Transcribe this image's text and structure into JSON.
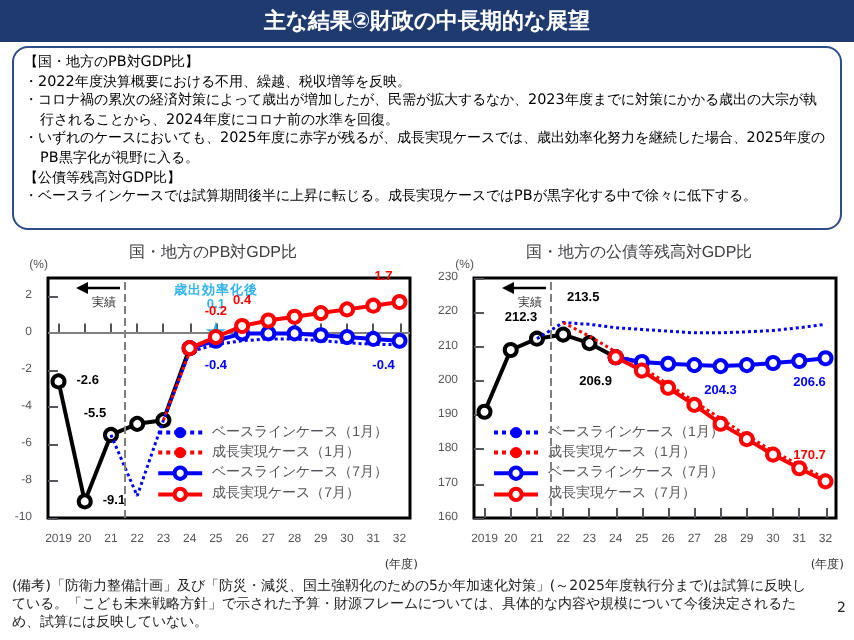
{
  "chart_data": [
    {
      "type": "other",
      "title": "主な結果②財政の中長期的な展望",
      "annotations": [
        "【国・地方のPB対GDP比】",
        "・2022年度決算概要における不用、繰越、税収増等を反映。",
        "・コロナ禍の累次の経済対策によって歳出が増加したが、民需が拡大するなか、2023年度までに対策にかかる歳出の大宗が執行されることから、2024年度にコロナ前の水準を回復。",
        "・いずれのケースにおいても、2025年度に赤字が残るが、成長実現ケースでは、歳出効率化努力を継続した場合、2025年度のPB黒字化が視野に入る。",
        "【公債等残高対GDP比】",
        "・ベースラインケースでは試算期間後半に上昇に転じる。成長実現ケースではPBが黒字化する中で徐々に低下する。"
      ]
    },
    {
      "type": "line",
      "title": "国・地方のPB対GDP比",
      "xlabel": "(年度)",
      "ylabel": "(%)",
      "legend": "bottom right",
      "grid": false,
      "x": [
        2019,
        2020,
        2021,
        2022,
        2023,
        2024,
        2025,
        2026,
        2027,
        2028,
        2029,
        2030,
        2031,
        2032
      ],
      "xlim": [
        2018.6,
        2032.4
      ],
      "xticks": [
        2019,
        {
          "value": 2020,
          "label": "20"
        },
        {
          "value": 2021,
          "label": "21"
        },
        {
          "value": 2022,
          "label": "22"
        },
        {
          "value": 2023,
          "label": "23"
        },
        {
          "value": 2024,
          "label": "24"
        },
        {
          "value": 2025,
          "label": "25"
        },
        {
          "value": 2026,
          "label": "26"
        },
        {
          "value": 2027,
          "label": "27"
        },
        {
          "value": 2028,
          "label": "28"
        },
        {
          "value": 2029,
          "label": "29"
        },
        {
          "value": 2030,
          "label": "30"
        },
        {
          "value": 2031,
          "label": "31"
        },
        {
          "value": 2032,
          "label": "32"
        }
      ],
      "ylim": [
        -10,
        3
      ],
      "yticks": [
        -10,
        -8,
        -6,
        -4,
        -2,
        0,
        2
      ],
      "ref_lines": [
        {
          "axis": "x",
          "value": 2021.5,
          "label": "実績",
          "color": "#808080",
          "line_style": "dashed"
        },
        {
          "axis": "y",
          "value": 0,
          "label": null,
          "color": "#808080",
          "line_style": "solid"
        }
      ],
      "series": [
        {
          "color": "#000000",
          "marker": "circle",
          "line_style": "solid",
          "values": [
            -2.6,
            -9.1,
            -5.5,
            -4.9,
            -4.7,
            -0.8,
            null,
            null,
            null,
            null,
            null,
            null,
            null,
            null
          ],
          "value_labels": [
            "-2.6",
            "-9.1",
            "-5.5",
            null,
            null,
            null,
            null,
            null,
            null,
            null,
            null,
            null,
            null,
            null
          ]
        },
        {
          "name": "ベースラインケース（1月）",
          "color": "#0000ff",
          "marker": "none",
          "line_style": "dotted",
          "values": [
            null,
            null,
            -5.5,
            -8.8,
            -4.7,
            -1.0,
            -0.6,
            -0.4,
            -0.3,
            -0.3,
            -0.4,
            -0.5,
            -0.6,
            -0.6
          ]
        },
        {
          "name": "成長実現ケース（1月）",
          "color": "#ff0000",
          "marker": "none",
          "line_style": "dotted",
          "values": [
            null,
            null,
            null,
            null,
            -4.7,
            -1.0,
            null,
            null,
            null,
            null,
            null,
            null,
            null,
            null
          ]
        },
        {
          "name": "ベースラインケース（7月）",
          "color": "#0000ff",
          "marker": "circle",
          "line_style": "solid",
          "values": [
            null,
            null,
            null,
            null,
            null,
            -0.8,
            -0.4,
            0.0,
            0.0,
            0.0,
            -0.1,
            -0.2,
            -0.3,
            -0.4
          ],
          "value_labels": [
            null,
            null,
            null,
            null,
            null,
            null,
            "-0.4",
            null,
            null,
            null,
            null,
            null,
            null,
            "-0.4"
          ]
        },
        {
          "name": "成長実現ケース（7月）",
          "color": "#ff0000",
          "marker": "circle",
          "line_style": "solid",
          "values": [
            null,
            null,
            null,
            null,
            null,
            -0.8,
            -0.2,
            0.4,
            0.7,
            0.9,
            1.1,
            1.3,
            1.5,
            1.7
          ],
          "value_labels": [
            null,
            null,
            null,
            null,
            null,
            null,
            "-0.2",
            "0.4",
            null,
            null,
            null,
            null,
            null,
            "1.7"
          ]
        },
        {
          "name": "歳出効率化後",
          "type": "scatter",
          "color": "#00a0e9",
          "marker": "star",
          "x": [
            2025
          ],
          "values": [
            0.1
          ],
          "value_labels": [
            "0.1"
          ]
        }
      ]
    },
    {
      "type": "line",
      "title": "国・地方の公債等残高対GDP比",
      "xlabel": "(年度)",
      "ylabel": "(%)",
      "legend": "bottom left",
      "grid": false,
      "x": [
        2019,
        2020,
        2021,
        2022,
        2023,
        2024,
        2025,
        2026,
        2027,
        2028,
        2029,
        2030,
        2031,
        2032
      ],
      "xlim": [
        2018.6,
        2032.4
      ],
      "xticks": [
        2019,
        {
          "value": 2020,
          "label": "20"
        },
        {
          "value": 2021,
          "label": "21"
        },
        {
          "value": 2022,
          "label": "22"
        },
        {
          "value": 2023,
          "label": "23"
        },
        {
          "value": 2024,
          "label": "24"
        },
        {
          "value": 2025,
          "label": "25"
        },
        {
          "value": 2026,
          "label": "26"
        },
        {
          "value": 2027,
          "label": "27"
        },
        {
          "value": 2028,
          "label": "28"
        },
        {
          "value": 2029,
          "label": "29"
        },
        {
          "value": 2030,
          "label": "30"
        },
        {
          "value": 2031,
          "label": "31"
        },
        {
          "value": 2032,
          "label": "32"
        }
      ],
      "ylim": [
        160,
        230
      ],
      "yticks": [
        160,
        170,
        180,
        190,
        200,
        210,
        220,
        230
      ],
      "ref_lines": [
        {
          "axis": "x",
          "value": 2021.5,
          "label": "実績",
          "color": "#808080",
          "line_style": "dashed"
        }
      ],
      "annotations": [
        "(備考)「防衛力整備計画」及び「防災・減災、国土強靱化のための5か年加速化対策」(～2025年度執行分まで)は試算に反映している。「こども未来戦略方針」で示された予算・財源フレームについては、具体的な内容や規模について今後決定されるため、試算には反映していない。",
        "2"
      ],
      "series": [
        {
          "color": "#000000",
          "marker": "circle",
          "line_style": "solid",
          "values": [
            191,
            209,
            212.3,
            213.5,
            211,
            206.9,
            null,
            null,
            null,
            null,
            null,
            null,
            null,
            null
          ],
          "value_labels": [
            null,
            null,
            "212.3",
            "213.5",
            null,
            "206.9",
            null,
            null,
            null,
            null,
            null,
            null,
            null,
            null
          ]
        },
        {
          "name": "ベースラインケース（1月）",
          "color": "#0000ff",
          "marker": "none",
          "line_style": "dotted",
          "values": [
            null,
            null,
            212.3,
            217,
            216.5,
            215.5,
            215,
            214.5,
            214,
            214,
            214.3,
            214.7,
            215.5,
            216.5
          ]
        },
        {
          "name": "成長実現ケース（1月）",
          "color": "#ff0000",
          "marker": "none",
          "line_style": "dotted",
          "values": [
            null,
            null,
            null,
            217,
            213,
            208.5,
            204,
            199,
            194,
            189,
            184,
            179.5,
            175.5,
            171.5
          ]
        },
        {
          "name": "ベースラインケース（7月）",
          "color": "#0000ff",
          "marker": "circle",
          "line_style": "solid",
          "values": [
            null,
            null,
            null,
            null,
            null,
            206.9,
            205.5,
            205,
            204.6,
            204.3,
            204.6,
            205.2,
            205.8,
            206.6
          ],
          "value_labels": [
            null,
            null,
            null,
            null,
            null,
            null,
            null,
            null,
            null,
            "204.3",
            null,
            null,
            null,
            "206.6"
          ]
        },
        {
          "name": "成長実現ケース（7月）",
          "color": "#ff0000",
          "marker": "circle",
          "line_style": "solid",
          "values": [
            null,
            null,
            null,
            null,
            null,
            206.9,
            203,
            198,
            193,
            187.5,
            183,
            178.5,
            174.5,
            170.7
          ],
          "value_labels": [
            null,
            null,
            null,
            null,
            null,
            null,
            null,
            null,
            null,
            null,
            null,
            null,
            null,
            "170.7"
          ]
        }
      ]
    }
  ]
}
